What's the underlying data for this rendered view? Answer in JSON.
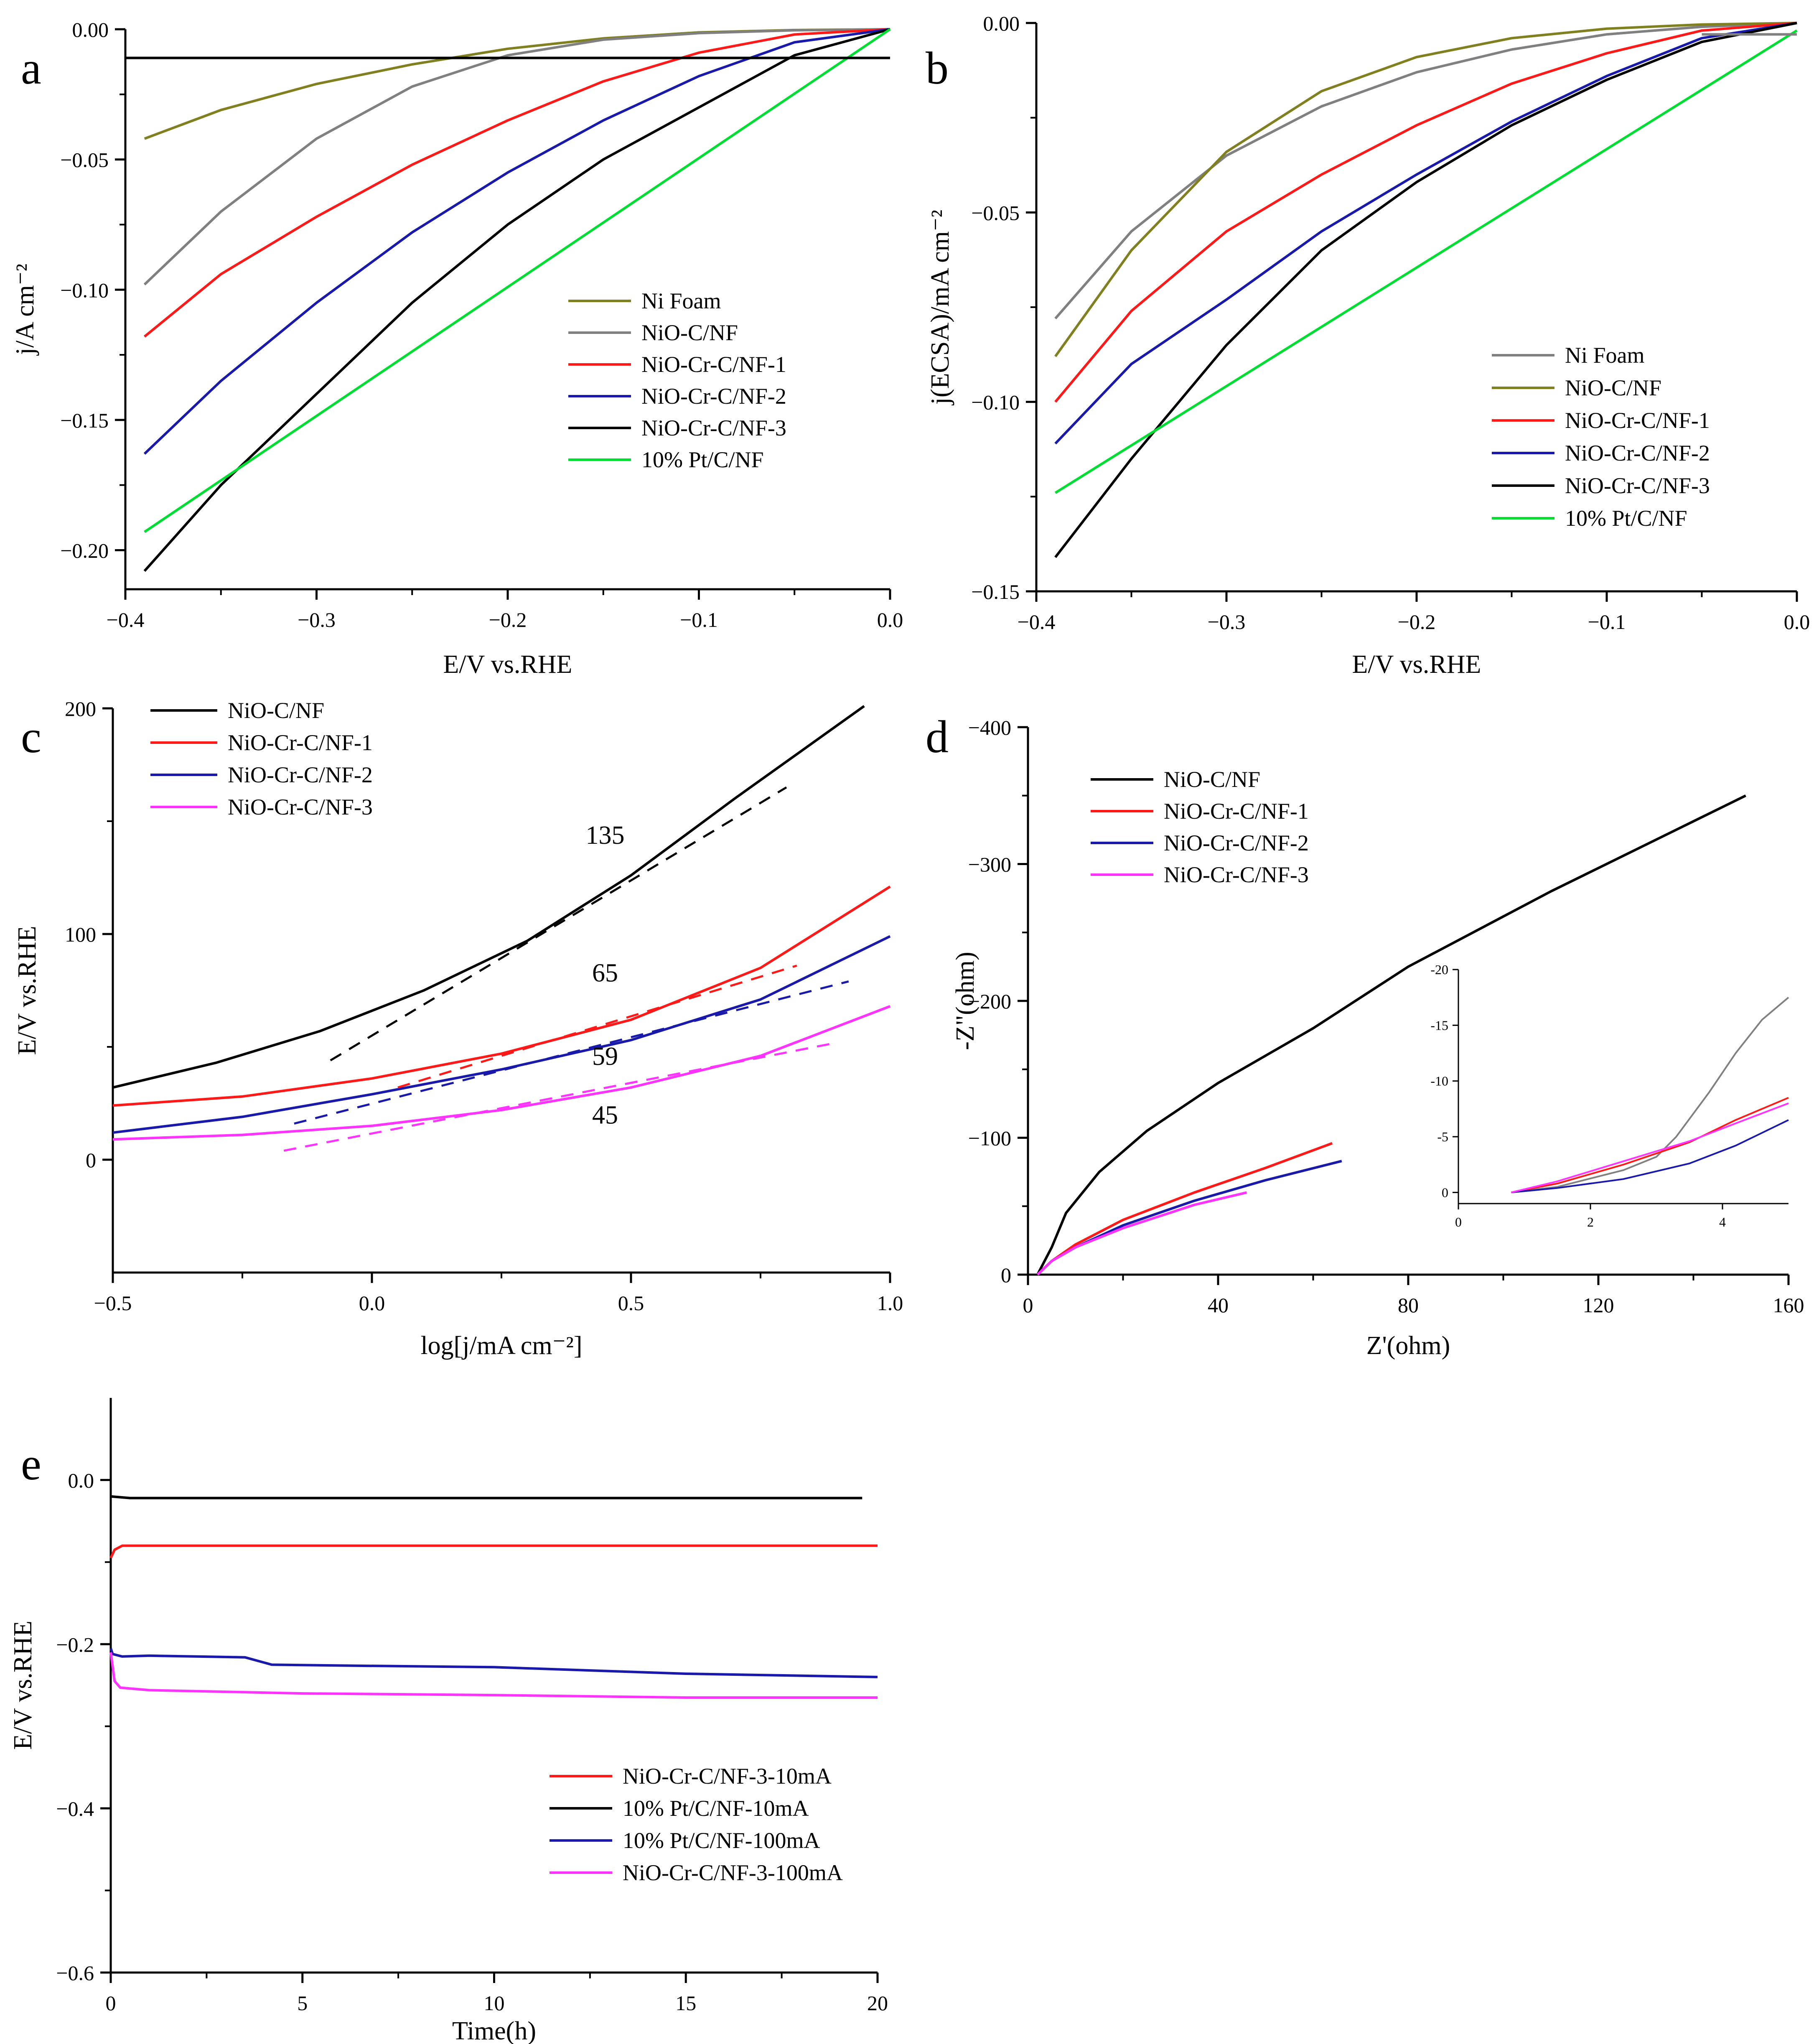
{
  "colors": {
    "black": "#000000",
    "gray": "#808080",
    "olive": "#808020",
    "red": "#ff1a1a",
    "blue": "#1a1aaa",
    "green": "#00dd33",
    "magenta": "#ff33ff"
  },
  "chart_data": [
    {
      "panel": "a",
      "type": "line",
      "xlabel": "E/V vs.RHE",
      "ylabel": "j/A cm⁻²",
      "xlim": [
        -0.4,
        0.0
      ],
      "ylim": [
        -0.215,
        0.0
      ],
      "xticks": [
        -0.4,
        -0.3,
        -0.2,
        -0.1,
        0.0
      ],
      "xtick_labels": [
        "−0.4",
        "−0.3",
        "−0.2",
        "−0.1",
        "0.0"
      ],
      "yticks": [
        -0.2,
        -0.15,
        -0.1,
        -0.05,
        0.0
      ],
      "ytick_labels": [
        "−0.20",
        "−0.15",
        "−0.10",
        "−0.05",
        "0.00"
      ],
      "legend_position": "center-right",
      "series": [
        {
          "name": "Ni Foam",
          "color": "olive",
          "x": [
            -0.39,
            -0.35,
            -0.3,
            -0.25,
            -0.2,
            -0.15,
            -0.1,
            -0.05,
            0.0
          ],
          "y": [
            -0.042,
            -0.031,
            -0.021,
            -0.0135,
            -0.0075,
            -0.0035,
            -0.0012,
            -0.0003,
            0.0
          ]
        },
        {
          "name": "NiO-C/NF",
          "color": "gray",
          "x": [
            -0.39,
            -0.35,
            -0.3,
            -0.25,
            -0.2,
            -0.15,
            -0.1,
            -0.05,
            0.0
          ],
          "y": [
            -0.098,
            -0.07,
            -0.042,
            -0.022,
            -0.01,
            -0.004,
            -0.0015,
            -0.0004,
            0.0
          ]
        },
        {
          "name": "NiO-Cr-C/NF-1",
          "color": "red",
          "x": [
            -0.39,
            -0.35,
            -0.3,
            -0.25,
            -0.2,
            -0.15,
            -0.1,
            -0.05,
            0.0
          ],
          "y": [
            -0.118,
            -0.094,
            -0.072,
            -0.052,
            -0.035,
            -0.02,
            -0.009,
            -0.002,
            0.0
          ]
        },
        {
          "name": "NiO-Cr-C/NF-2",
          "color": "blue",
          "x": [
            -0.39,
            -0.35,
            -0.3,
            -0.25,
            -0.2,
            -0.15,
            -0.1,
            -0.05,
            0.0
          ],
          "y": [
            -0.163,
            -0.135,
            -0.105,
            -0.078,
            -0.055,
            -0.035,
            -0.018,
            -0.005,
            0.0
          ]
        },
        {
          "name": "NiO-Cr-C/NF-3",
          "color": "black",
          "x": [
            -0.39,
            -0.35,
            -0.3,
            -0.25,
            -0.2,
            -0.15,
            -0.1,
            -0.05,
            0.0
          ],
          "y": [
            -0.208,
            -0.175,
            -0.14,
            -0.105,
            -0.075,
            -0.05,
            -0.03,
            -0.01,
            0.0
          ]
        },
        {
          "name": "10% Pt/C/NF",
          "color": "green",
          "x": [
            -0.39,
            0.0
          ],
          "y": [
            -0.193,
            0.0
          ]
        },
        {
          "name": "",
          "color": "black",
          "x": [
            -0.4,
            0.0
          ],
          "y": [
            -0.011,
            -0.011
          ]
        }
      ]
    },
    {
      "panel": "b",
      "type": "line",
      "xlabel": "E/V vs.RHE",
      "ylabel": "j(ECSA)/mA cm⁻²",
      "xlim": [
        -0.4,
        0.0
      ],
      "ylim": [
        -0.15,
        0.0
      ],
      "xticks": [
        -0.4,
        -0.3,
        -0.2,
        -0.1,
        0.0
      ],
      "xtick_labels": [
        "−0.4",
        "−0.3",
        "−0.2",
        "−0.1",
        "0.0"
      ],
      "yticks": [
        -0.15,
        -0.1,
        -0.05,
        0.0
      ],
      "ytick_labels": [
        "−0.15",
        "−0.10",
        "−0.05",
        "0.00"
      ],
      "legend_position": "center-right",
      "series": [
        {
          "name": "Ni Foam",
          "color": "gray",
          "x": [
            -0.39,
            -0.35,
            -0.3,
            -0.25,
            -0.2,
            -0.15,
            -0.1,
            -0.05,
            0.0
          ],
          "y": [
            -0.078,
            -0.055,
            -0.035,
            -0.022,
            -0.013,
            -0.007,
            -0.003,
            -0.001,
            0.0
          ]
        },
        {
          "name": "NiO-C/NF",
          "color": "olive",
          "x": [
            -0.39,
            -0.35,
            -0.3,
            -0.25,
            -0.2,
            -0.15,
            -0.1,
            -0.05,
            0.0
          ],
          "y": [
            -0.088,
            -0.06,
            -0.034,
            -0.018,
            -0.009,
            -0.004,
            -0.0015,
            -0.0004,
            0.0
          ]
        },
        {
          "name": "NiO-Cr-C/NF-1",
          "color": "red",
          "x": [
            -0.39,
            -0.35,
            -0.3,
            -0.25,
            -0.2,
            -0.15,
            -0.1,
            -0.05,
            0.0
          ],
          "y": [
            -0.1,
            -0.076,
            -0.055,
            -0.04,
            -0.027,
            -0.016,
            -0.008,
            -0.002,
            0.0
          ]
        },
        {
          "name": "NiO-Cr-C/NF-2",
          "color": "blue",
          "x": [
            -0.39,
            -0.35,
            -0.3,
            -0.25,
            -0.2,
            -0.15,
            -0.1,
            -0.05,
            0.0
          ],
          "y": [
            -0.111,
            -0.09,
            -0.073,
            -0.055,
            -0.04,
            -0.026,
            -0.014,
            -0.004,
            0.0
          ]
        },
        {
          "name": "NiO-Cr-C/NF-3",
          "color": "black",
          "x": [
            -0.39,
            -0.35,
            -0.3,
            -0.25,
            -0.2,
            -0.15,
            -0.1,
            -0.05,
            0.0
          ],
          "y": [
            -0.141,
            -0.115,
            -0.085,
            -0.06,
            -0.042,
            -0.027,
            -0.015,
            -0.005,
            0.0
          ]
        },
        {
          "name": "10% Pt/C/NF",
          "color": "green",
          "x": [
            -0.39,
            0.0
          ],
          "y": [
            -0.124,
            -0.002
          ]
        },
        {
          "name": "",
          "color": "gray",
          "x": [
            -0.05,
            0.0
          ],
          "y": [
            -0.003,
            -0.003
          ]
        }
      ]
    },
    {
      "panel": "c",
      "type": "line",
      "xlabel": "log[j/mA cm⁻²]",
      "ylabel": "E/V vs.RHE",
      "xlim": [
        -0.5,
        1.0
      ],
      "ylim": [
        -50,
        200
      ],
      "xticks": [
        -0.5,
        0.0,
        0.5,
        1.0
      ],
      "xtick_labels": [
        "−0.5",
        "0.0",
        "0.5",
        "1.0"
      ],
      "yticks": [
        0,
        100,
        200
      ],
      "ytick_labels": [
        "0",
        "100",
        "200"
      ],
      "legend_position": "top-left",
      "annotations": [
        {
          "text": "135",
          "x": 0.45,
          "y": 140,
          "color": "black"
        },
        {
          "text": "65",
          "x": 0.45,
          "y": 79,
          "color": "red"
        },
        {
          "text": "59",
          "x": 0.45,
          "y": 42,
          "color": "blue"
        },
        {
          "text": "45",
          "x": 0.45,
          "y": 16,
          "color": "magenta"
        }
      ],
      "series": [
        {
          "name": "NiO-C/NF",
          "color": "black",
          "x": [
            -0.5,
            -0.3,
            -0.1,
            0.1,
            0.3,
            0.5,
            0.7,
            0.95
          ],
          "y": [
            32,
            43,
            57,
            75,
            97,
            126,
            160,
            201
          ]
        },
        {
          "name": "NiO-Cr-C/NF-1",
          "color": "red",
          "x": [
            -0.5,
            -0.25,
            0.0,
            0.25,
            0.5,
            0.75,
            1.0
          ],
          "y": [
            24,
            28,
            36,
            47,
            62,
            85,
            121
          ]
        },
        {
          "name": "NiO-Cr-C/NF-2",
          "color": "blue",
          "x": [
            -0.5,
            -0.25,
            0.0,
            0.25,
            0.5,
            0.75,
            1.0
          ],
          "y": [
            12,
            19,
            29,
            40,
            53,
            71,
            99
          ]
        },
        {
          "name": "NiO-Cr-C/NF-3",
          "color": "magenta",
          "x": [
            -0.5,
            -0.25,
            0.0,
            0.25,
            0.5,
            0.75,
            1.0
          ],
          "y": [
            9,
            11,
            15,
            22,
            32,
            46,
            68
          ]
        },
        {
          "name": "",
          "color": "black",
          "dashed": true,
          "x": [
            -0.08,
            0.8
          ],
          "y": [
            44,
            165
          ]
        },
        {
          "name": "",
          "color": "red",
          "dashed": true,
          "x": [
            0.05,
            0.82
          ],
          "y": [
            32,
            86
          ]
        },
        {
          "name": "",
          "color": "blue",
          "dashed": true,
          "x": [
            -0.15,
            0.92
          ],
          "y": [
            16,
            79
          ]
        },
        {
          "name": "",
          "color": "magenta",
          "dashed": true,
          "x": [
            -0.17,
            0.9
          ],
          "y": [
            4,
            52
          ]
        }
      ]
    },
    {
      "panel": "d",
      "type": "line",
      "xlabel": "Z'(ohm)",
      "ylabel": "-Z\"(ohm)",
      "xlim": [
        0,
        160
      ],
      "ylim": [
        0,
        -400
      ],
      "xticks": [
        0,
        40,
        80,
        120,
        160
      ],
      "xtick_labels": [
        "0",
        "40",
        "80",
        "120",
        "160"
      ],
      "yticks": [
        0,
        -100,
        -200,
        -300,
        -400
      ],
      "ytick_labels": [
        "0",
        "−100",
        "−200",
        "−300",
        "−400"
      ],
      "legend_position": "top-left",
      "series": [
        {
          "name": "NiO-C/NF",
          "color": "black",
          "x": [
            2,
            5,
            8,
            15,
            25,
            40,
            60,
            80,
            110,
            151
          ],
          "y": [
            0,
            -20,
            -45,
            -75,
            -105,
            -140,
            -180,
            -225,
            -280,
            -350
          ]
        },
        {
          "name": "NiO-Cr-C/NF-1",
          "color": "red",
          "x": [
            2,
            5,
            10,
            20,
            35,
            50,
            64
          ],
          "y": [
            0,
            -10,
            -22,
            -40,
            -60,
            -78,
            -96
          ]
        },
        {
          "name": "NiO-Cr-C/NF-2",
          "color": "blue",
          "x": [
            2,
            5,
            10,
            20,
            35,
            50,
            66
          ],
          "y": [
            0,
            -10,
            -20,
            -36,
            -54,
            -69,
            -83
          ]
        },
        {
          "name": "NiO-Cr-C/NF-3",
          "color": "magenta",
          "x": [
            2,
            5,
            10,
            20,
            35,
            46
          ],
          "y": [
            0,
            -10,
            -20,
            -34,
            -51,
            -60
          ]
        }
      ],
      "inset": {
        "xlim": [
          0,
          5
        ],
        "ylim": [
          1,
          -20
        ],
        "xticks": [
          0,
          2,
          4
        ],
        "xtick_labels": [
          "0",
          "2",
          "4"
        ],
        "yticks": [
          0,
          -5,
          -10,
          -15,
          -20
        ],
        "ytick_labels": [
          "0",
          "-5",
          "-10",
          "-15",
          "-20"
        ],
        "series": [
          {
            "color": "gray",
            "x": [
              0.8,
              1.5,
              2.5,
              3.0,
              3.3,
              3.8,
              4.2,
              4.6,
              5.0
            ],
            "y": [
              0,
              -0.5,
              -2,
              -3.2,
              -5,
              -9,
              -12.5,
              -15.5,
              -17.5
            ]
          },
          {
            "color": "red",
            "x": [
              0.8,
              1.5,
              2.5,
              3.5,
              4.2,
              5.0
            ],
            "y": [
              0,
              -0.8,
              -2.5,
              -4.5,
              -6.5,
              -8.5
            ]
          },
          {
            "color": "blue",
            "x": [
              0.8,
              1.5,
              2.5,
              3.5,
              4.2,
              5.0
            ],
            "y": [
              0,
              -0.4,
              -1.2,
              -2.6,
              -4.2,
              -6.5
            ]
          },
          {
            "color": "magenta",
            "x": [
              0.8,
              1.5,
              2.5,
              3.5,
              4.2,
              5.0
            ],
            "y": [
              0,
              -1,
              -2.8,
              -4.6,
              -6.2,
              -8
            ]
          }
        ]
      }
    },
    {
      "panel": "e",
      "type": "line",
      "xlabel": "Time(h)",
      "ylabel": "E/V vs.RHE",
      "xlim": [
        0,
        20
      ],
      "ylim": [
        -0.6,
        0.1
      ],
      "xticks": [
        0,
        5,
        10,
        15,
        20
      ],
      "xtick_labels": [
        "0",
        "5",
        "10",
        "15",
        "20"
      ],
      "yticks": [
        -0.6,
        -0.4,
        -0.2,
        0.0
      ],
      "ytick_labels": [
        "−0.6",
        "−0.4",
        "−0.2",
        "0.0"
      ],
      "legend_position": "bottom-right",
      "series": [
        {
          "name": "NiO-Cr-C/NF-3-10mA",
          "color": "red",
          "x": [
            0,
            0.1,
            0.3,
            1,
            5,
            10,
            15,
            20
          ],
          "y": [
            -0.095,
            -0.085,
            -0.08,
            -0.08,
            -0.08,
            -0.08,
            -0.08,
            -0.08
          ]
        },
        {
          "name": "10% Pt/C/NF-10mA",
          "color": "black",
          "x": [
            0,
            0.5,
            1,
            5,
            10,
            15,
            19.6
          ],
          "y": [
            -0.02,
            -0.022,
            -0.022,
            -0.022,
            -0.022,
            -0.022,
            -0.022
          ]
        },
        {
          "name": "10% Pt/C/NF-100mA",
          "color": "blue",
          "x": [
            0,
            0.05,
            0.3,
            1,
            3.5,
            4.2,
            6,
            10,
            15,
            20
          ],
          "y": [
            -0.205,
            -0.212,
            -0.215,
            -0.214,
            -0.216,
            -0.225,
            -0.226,
            -0.228,
            -0.236,
            -0.24
          ]
        },
        {
          "name": "NiO-Cr-C/NF-3-100mA",
          "color": "magenta",
          "x": [
            0,
            0.1,
            0.25,
            1,
            5,
            10,
            15,
            20
          ],
          "y": [
            -0.21,
            -0.245,
            -0.253,
            -0.256,
            -0.26,
            -0.262,
            -0.265,
            -0.265
          ]
        }
      ]
    }
  ],
  "panel_letters": [
    "a",
    "b",
    "c",
    "d",
    "e"
  ]
}
